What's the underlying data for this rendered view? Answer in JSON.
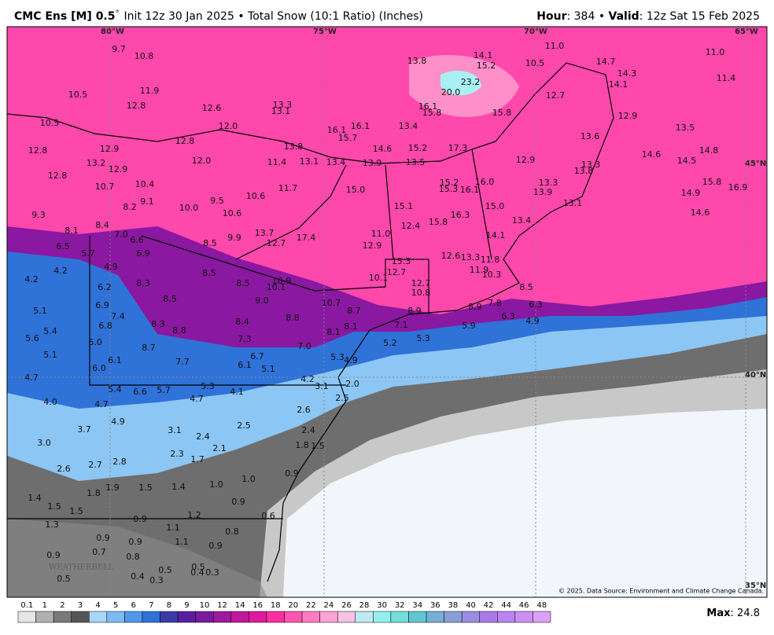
{
  "header": {
    "model_name": "CMC Ens [M] 0.5",
    "model_degree": "°",
    "description": "Init 12z 30 Jan 2025 • Total Snow (10:1 Ratio) (Inches)",
    "hour_label": "Hour",
    "hour_value": ": 384 • ",
    "valid_label": "Valid",
    "valid_value": ": 12z Sat 15 Feb 2025"
  },
  "map": {
    "longitude_labels": [
      "80°W",
      "75°W",
      "70°W",
      "65°W"
    ],
    "latitude_labels": [
      "45°N",
      "40°N",
      "35°N"
    ],
    "watermark": "WEATHERBELL",
    "credit": "© 2025. Data Source: Environment and Climate Change Canada.",
    "snow_labels": [
      "9.7",
      "10.8",
      "10.5",
      "11.9",
      "12.8",
      "12.6",
      "13.3",
      "13.1",
      "10.5",
      "12.0",
      "12.8",
      "13.8",
      "12.9",
      "12.8",
      "13.2",
      "12.9",
      "12.0",
      "11.4",
      "13.1",
      "12.8",
      "10.7",
      "10.4",
      "10.6",
      "11.7",
      "15.0",
      "9.3",
      "8.2",
      "9.1",
      "10.0",
      "9.5",
      "10.6",
      "8.1",
      "8.4",
      "7.0",
      "6.6",
      "13.7",
      "17.4",
      "9.9",
      "12.7",
      "8.5",
      "6.5",
      "5.7",
      "6.9",
      "4.9",
      "4.2",
      "4.2",
      "8.5",
      "8.5",
      "10.9",
      "10.1",
      "8.3",
      "6.2",
      "8.5",
      "9.0",
      "10.7",
      "6.9",
      "7.4",
      "5.1",
      "5.4",
      "5.6",
      "6.8",
      "8.3",
      "8.8",
      "8.4",
      "8.8",
      "8.7",
      "8.1",
      "8.1",
      "7.1",
      "7.3",
      "6.0",
      "8.7",
      "7.0",
      "6.7",
      "5.1",
      "6.1",
      "7.7",
      "6.1",
      "5.1",
      "6.0",
      "5.3",
      "4.9",
      "5.2",
      "5.3",
      "4.7",
      "5.4",
      "6.6",
      "5.7",
      "5.3",
      "4.1",
      "4.2",
      "3.1",
      "2.0",
      "4.7",
      "4.0",
      "4.7",
      "2.5",
      "4.9",
      "3.7",
      "3.1",
      "2.4",
      "2.5",
      "2.6",
      "2.4",
      "3.0",
      "2.3",
      "1.7",
      "2.1",
      "1.8",
      "1.5",
      "2.6",
      "2.7",
      "2.8",
      "1.0",
      "1.9",
      "1.5",
      "1.4",
      "1.0",
      "0.9",
      "1.8",
      "1.4",
      "1.5",
      "1.5",
      "0.9",
      "1.2",
      "0.6",
      "1.3",
      "0.9",
      "1.1",
      "0.8",
      "0.9",
      "0.9",
      "1.1",
      "0.9",
      "0.7",
      "0.8",
      "0.9",
      "0.5",
      "0.5",
      "0.4",
      "0.3",
      "0.4",
      "0.3",
      "0.5",
      "13.8",
      "14.1",
      "15.2",
      "11.0",
      "10.5",
      "23.2",
      "20.0",
      "16.1",
      "15.8",
      "15.8",
      "12.7",
      "14.7",
      "14.3",
      "14.1",
      "11.0",
      "11.4",
      "12.9",
      "13.5",
      "13.6",
      "16.1",
      "16.1",
      "15.7",
      "14.6",
      "13.4",
      "15.2",
      "17.3",
      "13.9",
      "13.5",
      "12.9",
      "14.6",
      "14.5",
      "14.8",
      "13.3",
      "13.8",
      "13.3",
      "13.9",
      "15.2",
      "15.3",
      "16.1",
      "16.0",
      "16.9",
      "15.8",
      "14.9",
      "15.1",
      "16.3",
      "15.0",
      "13.1",
      "13.4",
      "14.6",
      "12.4",
      "15.8",
      "11.0",
      "14.1",
      "12.9",
      "15.3",
      "12.6",
      "13.3",
      "11.8",
      "12.7",
      "11.9",
      "10.3",
      "10.1",
      "12.7",
      "10.8",
      "8.5",
      "8.9",
      "8.9",
      "7.8",
      "6.3",
      "6.3",
      "4.9",
      "5.9",
      "13.4"
    ]
  },
  "legend": {
    "values": [
      "0.1",
      "1",
      "2",
      "3",
      "4",
      "5",
      "6",
      "7",
      "8",
      "9",
      "10",
      "12",
      "14",
      "16",
      "18",
      "20",
      "22",
      "24",
      "26",
      "28",
      "30",
      "32",
      "34",
      "36",
      "38",
      "40",
      "42",
      "44",
      "46",
      "48"
    ],
    "colors": [
      "#e6e6e6",
      "#b0b0b0",
      "#7a7a7a",
      "#555555",
      "#a9d6f7",
      "#7cbaf2",
      "#4f99ea",
      "#2f72d8",
      "#3b3aa6",
      "#5b1ea2",
      "#7a1a9c",
      "#9c1a9c",
      "#c0189e",
      "#e0199e",
      "#ff2ea0",
      "#ff55b2",
      "#ff7cc4",
      "#ffa2d4",
      "#f4c2e4",
      "#bfe8f2",
      "#94f0f0",
      "#72dede",
      "#62c6d2",
      "#74b0d4",
      "#8a9ed8",
      "#9a8ce0",
      "#aa7ae8",
      "#bb84f0",
      "#cc90f2",
      "#dda0f8"
    ]
  },
  "footer": {
    "max_label": "Max",
    "max_value": ": 24.8"
  }
}
